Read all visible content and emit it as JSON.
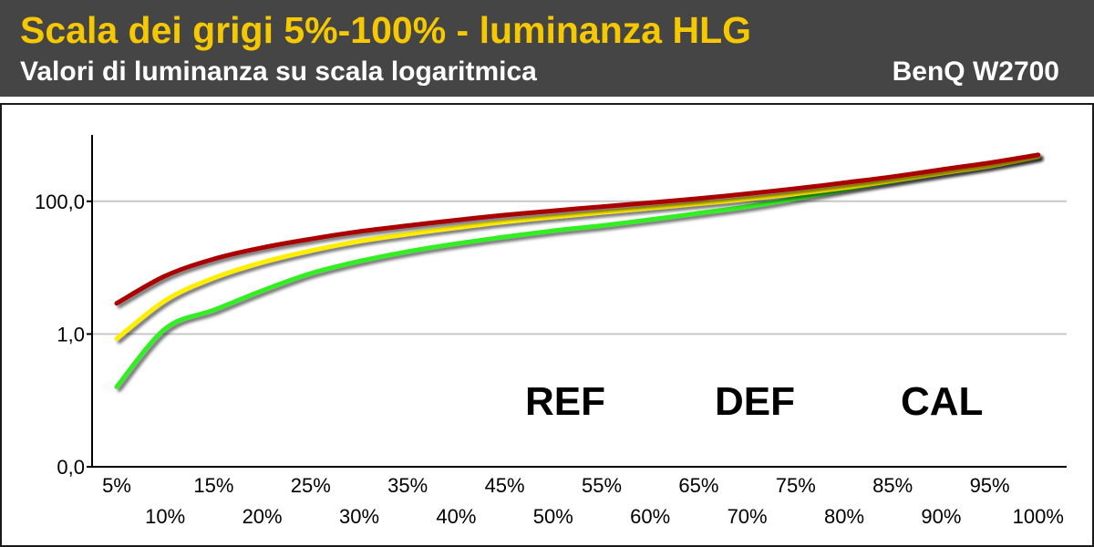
{
  "header": {
    "title": "Scala dei grigi 5%-100% - luminanza HLG",
    "subtitle": "Valori di luminanza su scala logaritmica",
    "device": "BenQ W2700"
  },
  "colors": {
    "header_bg": "#454545",
    "title": "#f5c800",
    "REF": "#33ee22",
    "DEF": "#ffee00",
    "CAL": "#aa0000"
  },
  "chart_data": {
    "type": "line",
    "yscale": "log",
    "ylim": [
      0.01,
      1000
    ],
    "y_tick_values": [
      0.01,
      1,
      100
    ],
    "y_tick_labels": [
      "0,0",
      "1,0",
      "100,0"
    ],
    "x": [
      5,
      10,
      15,
      20,
      25,
      30,
      35,
      40,
      45,
      50,
      55,
      60,
      65,
      70,
      75,
      80,
      85,
      90,
      95,
      100
    ],
    "x_tick_labels": [
      "5%",
      "10%",
      "15%",
      "20%",
      "25%",
      "30%",
      "35%",
      "40%",
      "45%",
      "50%",
      "55%",
      "60%",
      "65%",
      "70%",
      "75%",
      "80%",
      "85%",
      "90%",
      "95%",
      "100%"
    ],
    "grid": true,
    "legend_position": "bottom-right",
    "series": [
      {
        "name": "REF",
        "values": [
          0.16,
          1.2,
          2.3,
          4.5,
          8.2,
          12.5,
          17.5,
          23.0,
          29.0,
          36.0,
          43.0,
          53.0,
          66.0,
          83.0,
          110.0,
          150.0,
          200.0,
          265.0,
          350.0,
          480.0
        ]
      },
      {
        "name": "DEF",
        "values": [
          0.85,
          3.2,
          7.0,
          12.0,
          18.0,
          25.0,
          32.0,
          40.0,
          49.0,
          58.0,
          68.0,
          79.0,
          92.0,
          108.0,
          130.0,
          160.0,
          205.0,
          265.0,
          340.0,
          470.0
        ]
      },
      {
        "name": "CAL",
        "values": [
          2.9,
          7.5,
          13.5,
          20.0,
          27.0,
          35.0,
          43.0,
          52.0,
          62.0,
          72.0,
          83.0,
          95.0,
          110.0,
          130.0,
          155.0,
          190.0,
          235.0,
          300.0,
          380.0,
          500.0
        ]
      }
    ]
  }
}
